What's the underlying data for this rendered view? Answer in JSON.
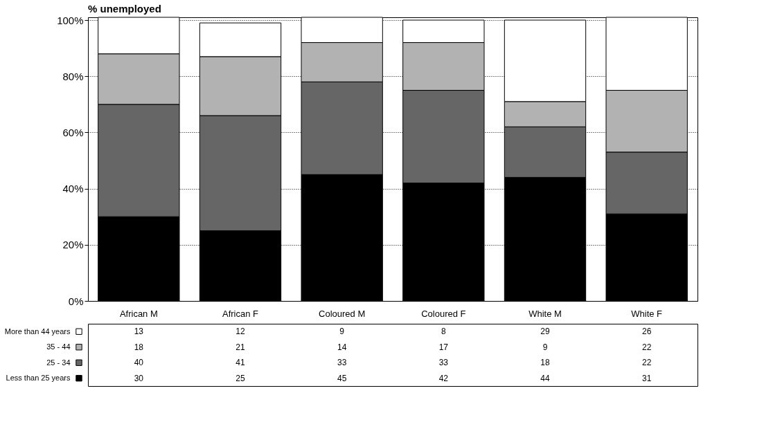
{
  "chart_data": {
    "type": "bar",
    "ylabel": "% unemployed",
    "stacked": true,
    "categories": [
      "African M",
      "African F",
      "Coloured M",
      "Coloured F",
      "White M",
      "White F"
    ],
    "series": [
      {
        "name": "Less than 25 years",
        "color": "#000000",
        "values": [
          30,
          25,
          45,
          42,
          44,
          31
        ]
      },
      {
        "name": "25 - 34",
        "color": "#666666",
        "values": [
          40,
          41,
          33,
          33,
          18,
          22
        ]
      },
      {
        "name": "35 - 44",
        "color": "#b2b2b2",
        "values": [
          18,
          21,
          14,
          17,
          9,
          22
        ]
      },
      {
        "name": "More than 44 years",
        "color": "#ffffff",
        "values": [
          13,
          12,
          9,
          8,
          29,
          26
        ]
      }
    ],
    "ylim": [
      0,
      101
    ],
    "yticks": [
      {
        "value": 0,
        "label": "0%"
      },
      {
        "value": 20,
        "label": "20%"
      },
      {
        "value": 40,
        "label": "40%"
      },
      {
        "value": 60,
        "label": "60%"
      },
      {
        "value": 80,
        "label": "80%"
      },
      {
        "value": 100,
        "label": "100%"
      }
    ],
    "grid": "y",
    "legend": "bottom",
    "data_labels": true
  }
}
